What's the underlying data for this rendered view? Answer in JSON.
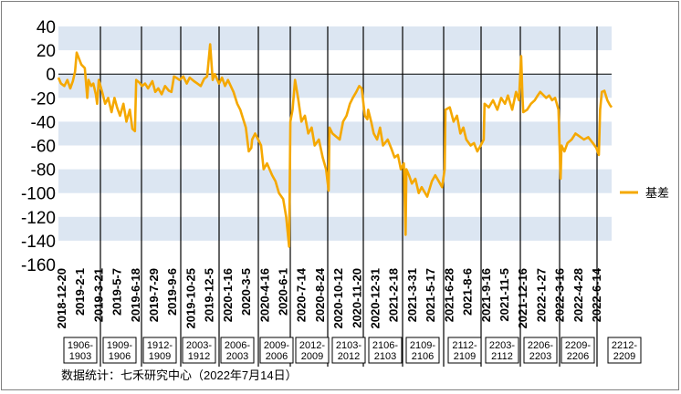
{
  "chart_data": {
    "type": "line",
    "title": "",
    "xlabel": "",
    "ylabel": "",
    "ylim": [
      -160,
      40
    ],
    "yticks": [
      40,
      20,
      0,
      -20,
      -40,
      -60,
      -80,
      -100,
      -120,
      -140,
      -160
    ],
    "grid": "alternating horizontal bands",
    "legend_position": "right",
    "x_start": "2018-12-20",
    "x_end": "2022-07-14",
    "x_tick_labels": [
      "2018-12-20",
      "2019-2-1",
      "2019-3-21",
      "2019-5-7",
      "2019-6-18",
      "2019-7-29",
      "2019-9-6",
      "2019-10-25",
      "2019-12-5",
      "2020-1-16",
      "2020-3-5",
      "2020-4-16",
      "2020-6-1",
      "2020-7-14",
      "2020-8-24",
      "2020-10-12",
      "2020-11-20",
      "2020-12-31",
      "2021-2-18",
      "2021-3-31",
      "2021-5-17",
      "2021-6-28",
      "2021-8-6",
      "2021-9-16",
      "2021-11-5",
      "2021-12-16",
      "2022-1-27",
      "2022-3-16",
      "2022-4-28",
      "2022-6-14"
    ],
    "contract_segments": [
      "1906-\n1903",
      "1909-\n1906",
      "1912-\n1909",
      "2003-\n1912",
      "2006-\n2003",
      "2009-\n2006",
      "2012-\n2009",
      "2103-\n2012",
      "2106-\n2103",
      "2109-\n2106",
      "2112-\n2109",
      "2203-\n2112",
      "2206-\n2203",
      "2209-\n2206",
      "2212-\n2209"
    ],
    "series": [
      {
        "name": "基差",
        "color": "#f5a800",
        "points": [
          [
            "2018-12-20",
            -3
          ],
          [
            "2018-12-26",
            -8
          ],
          [
            "2019-1-3",
            -10
          ],
          [
            "2019-1-10",
            -5
          ],
          [
            "2019-1-17",
            -12
          ],
          [
            "2019-1-23",
            -6
          ],
          [
            "2019-1-28",
            2
          ],
          [
            "2019-2-1",
            18
          ],
          [
            "2019-2-12",
            8
          ],
          [
            "2019-2-20",
            5
          ],
          [
            "2019-2-26",
            -20
          ],
          [
            "2019-3-1",
            -5
          ],
          [
            "2019-3-7",
            -10
          ],
          [
            "2019-3-12",
            -8
          ],
          [
            "2019-3-18",
            -17
          ],
          [
            "2019-3-21",
            -25
          ],
          [
            "2019-3-25",
            -5
          ],
          [
            "2019-4-2",
            -15
          ],
          [
            "2019-4-9",
            -25
          ],
          [
            "2019-4-16",
            -20
          ],
          [
            "2019-4-24",
            -32
          ],
          [
            "2019-5-1",
            -20
          ],
          [
            "2019-5-7",
            -28
          ],
          [
            "2019-5-14",
            -35
          ],
          [
            "2019-5-22",
            -25
          ],
          [
            "2019-5-29",
            -40
          ],
          [
            "2019-6-6",
            -30
          ],
          [
            "2019-6-12",
            -46
          ],
          [
            "2019-6-18",
            -48
          ],
          [
            "2019-6-21",
            -5
          ],
          [
            "2019-6-28",
            -7
          ],
          [
            "2019-7-5",
            -10
          ],
          [
            "2019-7-12",
            -8
          ],
          [
            "2019-7-19",
            -12
          ],
          [
            "2019-7-29",
            -6
          ],
          [
            "2019-8-5",
            -15
          ],
          [
            "2019-8-12",
            -12
          ],
          [
            "2019-8-20",
            -17
          ],
          [
            "2019-8-28",
            -10
          ],
          [
            "2019-9-6",
            -14
          ],
          [
            "2019-9-12",
            -15
          ],
          [
            "2019-9-18",
            -2
          ],
          [
            "2019-9-23",
            -3
          ],
          [
            "2019-10-1",
            -5
          ],
          [
            "2019-10-10",
            -2
          ],
          [
            "2019-10-18",
            -8
          ],
          [
            "2019-10-25",
            -3
          ],
          [
            "2019-11-4",
            -6
          ],
          [
            "2019-11-12",
            -8
          ],
          [
            "2019-11-20",
            -10
          ],
          [
            "2019-11-28",
            -4
          ],
          [
            "2019-12-5",
            -2
          ],
          [
            "2019-12-12",
            25
          ],
          [
            "2019-12-18",
            -5
          ],
          [
            "2019-12-23",
            0
          ],
          [
            "2020-1-2",
            -8
          ],
          [
            "2020-1-9",
            -3
          ],
          [
            "2020-1-16",
            -10
          ],
          [
            "2020-1-23",
            -5
          ],
          [
            "2020-2-5",
            -15
          ],
          [
            "2020-2-14",
            -25
          ],
          [
            "2020-2-21",
            -30
          ],
          [
            "2020-3-5",
            -45
          ],
          [
            "2020-3-12",
            -65
          ],
          [
            "2020-3-18",
            -62
          ],
          [
            "2020-3-20",
            -55
          ],
          [
            "2020-3-27",
            -50
          ],
          [
            "2020-4-3",
            -55
          ],
          [
            "2020-4-10",
            -60
          ],
          [
            "2020-4-16",
            -80
          ],
          [
            "2020-4-24",
            -75
          ],
          [
            "2020-5-6",
            -85
          ],
          [
            "2020-5-14",
            -90
          ],
          [
            "2020-5-22",
            -100
          ],
          [
            "2020-6-1",
            -105
          ],
          [
            "2020-6-8",
            -120
          ],
          [
            "2020-6-15",
            -145
          ],
          [
            "2020-6-18",
            -40
          ],
          [
            "2020-6-23",
            -30
          ],
          [
            "2020-6-29",
            -5
          ],
          [
            "2020-7-6",
            -20
          ],
          [
            "2020-7-14",
            -40
          ],
          [
            "2020-7-22",
            -35
          ],
          [
            "2020-7-30",
            -50
          ],
          [
            "2020-8-7",
            -45
          ],
          [
            "2020-8-14",
            -60
          ],
          [
            "2020-8-24",
            -55
          ],
          [
            "2020-9-2",
            -70
          ],
          [
            "2020-9-10",
            -80
          ],
          [
            "2020-9-16",
            -98
          ],
          [
            "2020-9-18",
            -45
          ],
          [
            "2020-9-25",
            -50
          ],
          [
            "2020-10-12",
            -55
          ],
          [
            "2020-10-20",
            -40
          ],
          [
            "2020-10-28",
            -35
          ],
          [
            "2020-11-5",
            -25
          ],
          [
            "2020-11-12",
            -20
          ],
          [
            "2020-11-20",
            -15
          ],
          [
            "2020-11-27",
            -10
          ],
          [
            "2020-12-3",
            -12
          ],
          [
            "2020-12-10",
            -35
          ],
          [
            "2020-12-16",
            -38
          ],
          [
            "2020-12-18",
            -30
          ],
          [
            "2020-12-25",
            -40
          ],
          [
            "2020-12-31",
            -50
          ],
          [
            "2021-1-8",
            -55
          ],
          [
            "2021-1-15",
            -45
          ],
          [
            "2021-1-22",
            -60
          ],
          [
            "2021-2-2",
            -55
          ],
          [
            "2021-2-10",
            -62
          ],
          [
            "2021-2-18",
            -70
          ],
          [
            "2021-2-26",
            -68
          ],
          [
            "2021-3-5",
            -80
          ],
          [
            "2021-3-12",
            -75
          ],
          [
            "2021-3-16",
            -135
          ],
          [
            "2021-3-18",
            -80
          ],
          [
            "2021-3-24",
            -85
          ],
          [
            "2021-3-31",
            -92
          ],
          [
            "2021-4-8",
            -88
          ],
          [
            "2021-4-16",
            -100
          ],
          [
            "2021-4-23",
            -95
          ],
          [
            "2021-5-6",
            -103
          ],
          [
            "2021-5-17",
            -90
          ],
          [
            "2021-5-25",
            -85
          ],
          [
            "2021-6-2",
            -90
          ],
          [
            "2021-6-10",
            -95
          ],
          [
            "2021-6-16",
            -80
          ],
          [
            "2021-6-18",
            -30
          ],
          [
            "2021-6-28",
            -28
          ],
          [
            "2021-7-7",
            -40
          ],
          [
            "2021-7-15",
            -35
          ],
          [
            "2021-7-23",
            -50
          ],
          [
            "2021-7-30",
            -45
          ],
          [
            "2021-8-6",
            -55
          ],
          [
            "2021-8-16",
            -60
          ],
          [
            "2021-8-24",
            -58
          ],
          [
            "2021-9-1",
            -65
          ],
          [
            "2021-9-9",
            -60
          ],
          [
            "2021-9-16",
            -55
          ],
          [
            "2021-9-18",
            -25
          ],
          [
            "2021-9-28",
            -28
          ],
          [
            "2021-10-8",
            -22
          ],
          [
            "2021-10-18",
            -30
          ],
          [
            "2021-10-27",
            -20
          ],
          [
            "2021-11-5",
            -25
          ],
          [
            "2021-11-12",
            -18
          ],
          [
            "2021-11-22",
            -30
          ],
          [
            "2021-12-1",
            -15
          ],
          [
            "2021-12-8",
            -22
          ],
          [
            "2021-12-13",
            15
          ],
          [
            "2021-12-16",
            -18
          ],
          [
            "2021-12-18",
            -32
          ],
          [
            "2021-12-27",
            -30
          ],
          [
            "2022-1-5",
            -25
          ],
          [
            "2022-1-14",
            -22
          ],
          [
            "2022-1-21",
            -18
          ],
          [
            "2022-1-27",
            -15
          ],
          [
            "2022-2-10",
            -20
          ],
          [
            "2022-2-17",
            -18
          ],
          [
            "2022-2-24",
            -22
          ],
          [
            "2022-3-3",
            -20
          ],
          [
            "2022-3-11",
            -30
          ],
          [
            "2022-3-16",
            -88
          ],
          [
            "2022-3-18",
            -60
          ],
          [
            "2022-3-25",
            -65
          ],
          [
            "2022-4-1",
            -58
          ],
          [
            "2022-4-11",
            -55
          ],
          [
            "2022-4-20",
            -50
          ],
          [
            "2022-4-28",
            -52
          ],
          [
            "2022-5-10",
            -55
          ],
          [
            "2022-5-20",
            -53
          ],
          [
            "2022-5-31",
            -58
          ],
          [
            "2022-6-8",
            -62
          ],
          [
            "2022-6-14",
            -68
          ],
          [
            "2022-6-17",
            -30
          ],
          [
            "2022-6-21",
            -15
          ],
          [
            "2022-6-27",
            -14
          ],
          [
            "2022-7-4",
            -22
          ],
          [
            "2022-7-10",
            -26
          ],
          [
            "2022-7-14",
            -28
          ]
        ]
      }
    ]
  },
  "legend": {
    "label": "基差"
  },
  "source_note": "数据统计：七禾研究中心（2022年7月14日）"
}
